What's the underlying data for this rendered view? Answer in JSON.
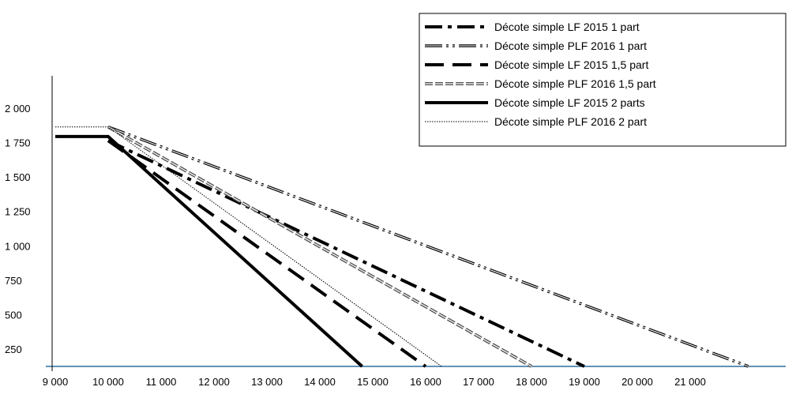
{
  "chart_data": {
    "type": "line",
    "title": "",
    "xlabel": "",
    "ylabel": "",
    "xlim": [
      9000,
      22500
    ],
    "ylim": [
      130,
      2000
    ],
    "x_ticks": [
      9000,
      10000,
      11000,
      12000,
      13000,
      14000,
      15000,
      16000,
      17000,
      18000,
      19000,
      20000,
      21000
    ],
    "x_tick_labels": [
      "9 000",
      "10 000",
      "11 000",
      "12 000",
      "13 000",
      "14 000",
      "15 000",
      "16 000",
      "17 000",
      "18 000",
      "19 000",
      "20 000",
      "21 000"
    ],
    "y_ticks": [
      250,
      500,
      750,
      1000,
      1250,
      1500,
      1750,
      2000
    ],
    "y_tick_labels": [
      "250",
      "500",
      "750",
      "1 000",
      "1 250",
      "1 500",
      "1 750",
      "2 000"
    ],
    "grid": false,
    "legend_position": "top-right",
    "series": [
      {
        "name": "Décote simple LF 2015 1 part",
        "style": "dash-dot",
        "color": "#000000",
        "points": [
          [
            10000,
            1770
          ],
          [
            19000,
            130
          ]
        ]
      },
      {
        "name": "Décote simple PLF 2016 1 part",
        "style": "double-dash-dot-dot",
        "color": "#000000",
        "points": [
          [
            10000,
            1870
          ],
          [
            22100,
            130
          ]
        ]
      },
      {
        "name": "Décote simple LF 2015 1,5 part",
        "style": "long-dash",
        "color": "#000000",
        "points": [
          [
            10000,
            1770
          ],
          [
            16000,
            130
          ]
        ]
      },
      {
        "name": "Décote simple PLF 2016 1,5 part",
        "style": "double-dash",
        "color": "#555555",
        "points": [
          [
            10000,
            1870
          ],
          [
            18000,
            130
          ]
        ]
      },
      {
        "name": "Décote simple LF 2015 2 parts",
        "style": "solid",
        "color": "#000000",
        "points": [
          [
            9000,
            1800
          ],
          [
            10000,
            1800
          ],
          [
            14800,
            130
          ]
        ]
      },
      {
        "name": "Décote simple PLF 2016 2 part",
        "style": "dotted",
        "color": "#000000",
        "points": [
          [
            9000,
            1870
          ],
          [
            10000,
            1870
          ],
          [
            16300,
            130
          ]
        ]
      }
    ],
    "baseline": {
      "y": 130,
      "color": "#2e6f9e"
    }
  }
}
